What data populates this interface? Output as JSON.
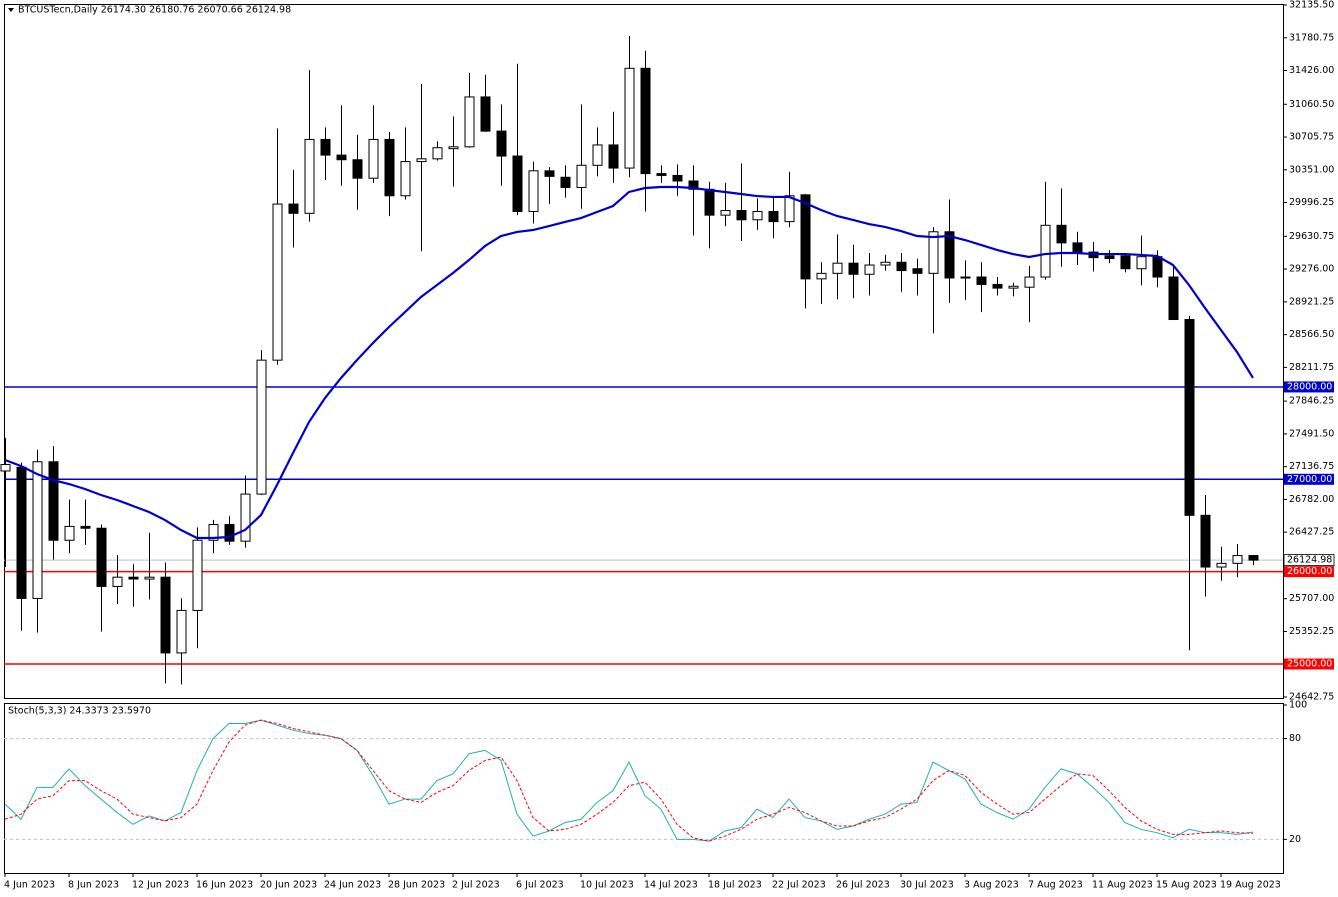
{
  "chart_data": [
    {
      "type": "candlestick",
      "title": "BTCUSTecn,Daily  26174.30 26180.76 26070.66 26124.98",
      "categories": [
        "4 Jun 2023",
        null,
        null,
        null,
        "8 Jun 2023",
        null,
        null,
        null,
        "12 Jun 2023",
        null,
        null,
        null,
        "16 Jun 2023",
        null,
        null,
        null,
        "20 Jun 2023",
        null,
        null,
        null,
        "24 Jun 2023",
        null,
        null,
        null,
        "28 Jun 2023",
        null,
        null,
        null,
        "2 Jul 2023",
        null,
        null,
        null,
        "6 Jul 2023",
        null,
        null,
        null,
        "10 Jul 2023",
        null,
        null,
        null,
        "14 Jul 2023",
        null,
        null,
        null,
        "18 Jul 2023",
        null,
        null,
        null,
        "22 Jul 2023",
        null,
        null,
        null,
        "26 Jul 2023",
        null,
        null,
        null,
        "30 Jul 2023",
        null,
        null,
        null,
        "3 Aug 2023",
        null,
        null,
        null,
        "7 Aug 2023",
        null,
        null,
        null,
        "11 Aug 2023",
        null,
        null,
        null,
        "15 Aug 2023",
        null,
        null,
        null,
        "19 Aug 2023",
        null,
        null
      ],
      "open": [
        27090,
        27130,
        25710,
        27190,
        26340,
        26490,
        26470,
        25840,
        25940,
        25920,
        25940,
        25120,
        25580,
        26340,
        26510,
        26330,
        26840,
        28290,
        29980,
        29880,
        30680,
        30510,
        30460,
        30260,
        30680,
        30070,
        30440,
        30470,
        30580,
        30600,
        31140,
        30770,
        30500,
        29900,
        30340,
        30270,
        30160,
        30400,
        30620,
        30370,
        31450,
        30310,
        30290,
        30230,
        30140,
        29860,
        29910,
        29810,
        29900,
        29790,
        30080,
        29170,
        29230,
        29340,
        29220,
        29320,
        29350,
        29280,
        29230,
        29680,
        29180,
        29190,
        29110,
        29070,
        29080,
        29190,
        29750,
        29560,
        29460,
        29420,
        29420,
        29280,
        29410,
        29190,
        28730,
        26610,
        26050,
        26090,
        26174.3
      ],
      "high": [
        27450,
        27180,
        27320,
        27360,
        26780,
        26780,
        26510,
        26180,
        26080,
        26420,
        26100,
        25710,
        26480,
        26560,
        26600,
        27040,
        28400,
        30800,
        30350,
        31430,
        30810,
        31050,
        30730,
        31050,
        30760,
        30810,
        31280,
        30660,
        30930,
        31400,
        31380,
        31060,
        31500,
        30440,
        30380,
        30400,
        31060,
        30810,
        30980,
        31800,
        31640,
        30400,
        30410,
        30400,
        30220,
        30210,
        30420,
        30040,
        30060,
        30330,
        30090,
        29350,
        29650,
        29540,
        29450,
        29430,
        29450,
        29390,
        29730,
        30030,
        29370,
        29350,
        29190,
        29130,
        29310,
        30220,
        30150,
        29680,
        29570,
        29480,
        29450,
        29640,
        29480,
        29300,
        28770,
        26830,
        26270,
        26300,
        26180.76
      ],
      "low": [
        26050,
        25360,
        25340,
        26130,
        26200,
        26290,
        25350,
        25650,
        25620,
        25700,
        24790,
        24780,
        25170,
        26200,
        26290,
        26260,
        26830,
        28240,
        29510,
        29790,
        30240,
        30180,
        29920,
        30210,
        29850,
        30030,
        29470,
        30450,
        30170,
        30590,
        30760,
        30180,
        29860,
        29770,
        29980,
        30050,
        29930,
        30280,
        30210,
        30270,
        29900,
        30210,
        30070,
        29640,
        29500,
        29740,
        29580,
        29700,
        29610,
        29730,
        28850,
        28900,
        28950,
        28960,
        28990,
        29260,
        29030,
        28990,
        28580,
        28910,
        28940,
        28810,
        28990,
        28980,
        28700,
        29160,
        29300,
        29320,
        29250,
        29340,
        29240,
        29100,
        29080,
        28730,
        25150,
        25730,
        25900,
        25940,
        26070.66
      ],
      "close": [
        27160,
        25710,
        27190,
        26340,
        26490,
        26470,
        25840,
        25940,
        25920,
        25940,
        25120,
        25580,
        26340,
        26510,
        26330,
        26840,
        28290,
        29980,
        29880,
        30680,
        30510,
        30460,
        30260,
        30680,
        30070,
        30440,
        30470,
        30590,
        30600,
        31140,
        30770,
        30500,
        29900,
        30340,
        30280,
        30160,
        30400,
        30620,
        30370,
        31450,
        30310,
        30290,
        30230,
        30140,
        29860,
        29910,
        29810,
        29900,
        29790,
        30070,
        29170,
        29230,
        29340,
        29220,
        29320,
        29350,
        29260,
        29230,
        29680,
        29180,
        29190,
        29110,
        29070,
        29090,
        29190,
        29750,
        29560,
        29460,
        29400,
        29390,
        29280,
        29410,
        29190,
        28730,
        26610,
        26050,
        26090,
        26174,
        26124.98
      ],
      "up_color": "#ffffff",
      "down_color": "#000000",
      "ma": {
        "color": "#0000cd",
        "values": [
          27209,
          27144,
          27057,
          26992,
          26949,
          26895,
          26830,
          26776,
          26711,
          26646,
          26559,
          26451,
          26364,
          26364,
          26375,
          26451,
          26613,
          26938,
          27285,
          27620,
          27880,
          28097,
          28292,
          28476,
          28649,
          28811,
          28974,
          29104,
          29234,
          29374,
          29526,
          29634,
          29678,
          29699,
          29742,
          29786,
          29829,
          29894,
          29959,
          30111,
          30154,
          30165,
          30165,
          30154,
          30132,
          30111,
          30089,
          30067,
          30057,
          30057,
          29992,
          29916,
          29851,
          29808,
          29764,
          29732,
          29688,
          29634,
          29623,
          29634,
          29591,
          29537,
          29483,
          29439,
          29407,
          29439,
          29450,
          29450,
          29439,
          29439,
          29439,
          29429,
          29418,
          29320,
          29104,
          28855,
          28616,
          28378,
          28097
        ]
      },
      "levels": [
        {
          "value": 28000,
          "label": "28000.00",
          "color": "#0000cd"
        },
        {
          "value": 27000,
          "label": "27000.00",
          "color": "#0000cd"
        },
        {
          "value": 26000,
          "label": "26000.00",
          "color": "#ff0000"
        },
        {
          "value": 25000,
          "label": "25000.00",
          "color": "#ff0000"
        }
      ],
      "last_price": {
        "value": 26124.98,
        "label": "26124.98",
        "color": "#c0c0c0"
      },
      "ylim": [
        24642.75,
        32135.5
      ],
      "yticks": [
        {
          "value": 32135.5,
          "label": "32135.50"
        },
        {
          "value": 31780.75,
          "label": "31780.75"
        },
        {
          "value": 31426,
          "label": "31426.00"
        },
        {
          "value": 31060.5,
          "label": "31060.50"
        },
        {
          "value": 30705.75,
          "label": "30705.75"
        },
        {
          "value": 30351,
          "label": "30351.00"
        },
        {
          "value": 29996.25,
          "label": "29996.25"
        },
        {
          "value": 29630.75,
          "label": "29630.75"
        },
        {
          "value": 29276,
          "label": "29276.00"
        },
        {
          "value": 28921.25,
          "label": "28921.25"
        },
        {
          "value": 28566.5,
          "label": "28566.50"
        },
        {
          "value": 28211.75,
          "label": "28211.75"
        },
        {
          "value": 27846.25,
          "label": "27846.25"
        },
        {
          "value": 27491.5,
          "label": "27491.50"
        },
        {
          "value": 27136.75,
          "label": "27136.75"
        },
        {
          "value": 26782,
          "label": "26782.00"
        },
        {
          "value": 26427.25,
          "label": "26427.25"
        },
        {
          "value": 25707,
          "label": "25707.00"
        },
        {
          "value": 25352.25,
          "label": "25352.25"
        },
        {
          "value": 24642.75,
          "label": "24642.75"
        }
      ]
    },
    {
      "type": "line",
      "title": "Stoch(5,3,3) 24.3373 23.5970",
      "series": [
        {
          "color": "#20b2aa",
          "values": [
            41,
            32,
            51,
            51,
            62,
            52,
            44,
            36,
            29,
            34,
            31,
            36,
            61,
            80,
            89,
            89,
            91,
            88,
            85,
            83,
            82,
            80,
            73,
            58,
            41,
            44,
            44,
            55,
            59,
            71,
            73,
            67,
            35,
            22,
            25,
            30,
            32,
            42,
            49,
            66,
            46,
            38,
            20,
            20,
            19,
            25,
            27,
            38,
            33,
            44,
            33,
            31,
            26,
            28,
            32,
            35,
            41,
            42,
            66,
            61,
            56,
            41,
            36,
            32,
            38,
            51,
            62,
            59,
            51,
            42,
            30,
            26,
            24,
            21,
            26,
            24,
            24,
            23,
            24.3373
          ]
        },
        {
          "color": "#ff0000",
          "dashed": true,
          "values": [
            32,
            35,
            44,
            46,
            55,
            55,
            49,
            44,
            35,
            33,
            31,
            33,
            41,
            61,
            78,
            88,
            91,
            89,
            86,
            84,
            82,
            80,
            73,
            61,
            49,
            44,
            42,
            48,
            52,
            61,
            67,
            69,
            55,
            33,
            25,
            26,
            29,
            35,
            42,
            52,
            54,
            44,
            29,
            21,
            19,
            22,
            26,
            32,
            35,
            39,
            36,
            31,
            28,
            28,
            31,
            33,
            38,
            44,
            55,
            61,
            58,
            48,
            41,
            35,
            36,
            44,
            52,
            59,
            58,
            49,
            39,
            31,
            26,
            23,
            23,
            24,
            25,
            24,
            23.597
          ]
        }
      ],
      "ylim": [
        0,
        100
      ],
      "yticks": [
        20,
        80,
        100
      ],
      "grid": "dashed"
    }
  ]
}
